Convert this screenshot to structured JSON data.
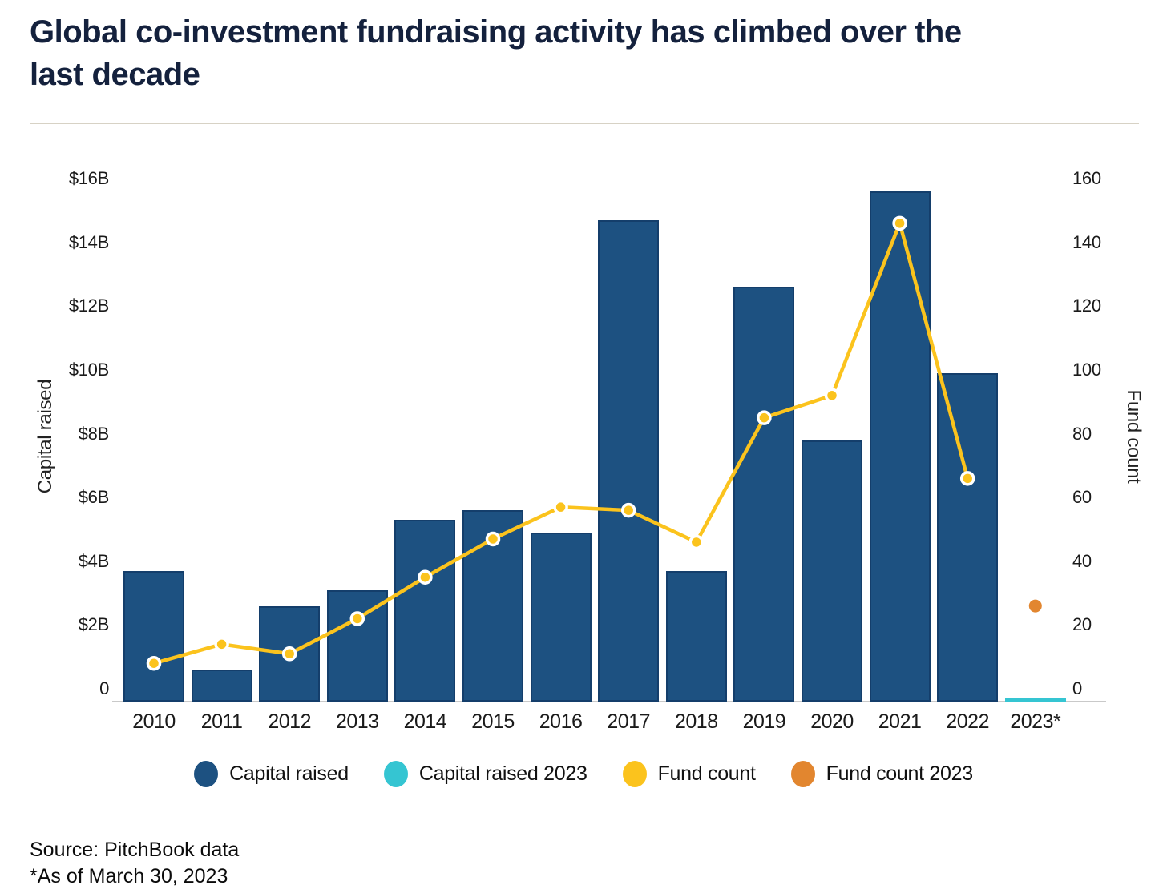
{
  "header": {
    "title_line1": "Global co-investment fundraising activity has climbed over the",
    "title_line2": "last decade"
  },
  "chart_data": {
    "type": "bar",
    "categories": [
      "2010",
      "2011",
      "2012",
      "2013",
      "2014",
      "2015",
      "2016",
      "2017",
      "2018",
      "2019",
      "2020",
      "2021",
      "2022",
      "2023*"
    ],
    "series": [
      {
        "name": "Capital raised",
        "type": "bar",
        "axis": "left",
        "color": "#1d5181",
        "values": [
          4.1,
          1.0,
          3.0,
          3.5,
          5.7,
          6.0,
          5.3,
          15.1,
          4.1,
          13.0,
          8.2,
          16.0,
          10.3,
          null
        ]
      },
      {
        "name": "Capital raised 2023",
        "type": "bar",
        "axis": "left",
        "color": "#35c5d2",
        "values": [
          null,
          null,
          null,
          null,
          null,
          null,
          null,
          null,
          null,
          null,
          null,
          null,
          null,
          0.1
        ]
      },
      {
        "name": "Fund count",
        "type": "line",
        "axis": "right",
        "color": "#fbc31d",
        "marker_stroke": "#ffffff",
        "values": [
          12,
          18,
          15,
          26,
          39,
          51,
          61,
          60,
          50,
          89,
          96,
          150,
          70,
          null
        ]
      },
      {
        "name": "Fund count 2023",
        "type": "scatter",
        "axis": "right",
        "color": "#e2862f",
        "values": [
          null,
          null,
          null,
          null,
          null,
          null,
          null,
          null,
          null,
          null,
          null,
          null,
          null,
          30
        ]
      }
    ],
    "y_left": {
      "label": "Capital raised",
      "ticks": [
        "$16B",
        "$14B",
        "$12B",
        "$10B",
        "$8B",
        "$6B",
        "$4B",
        "$2B",
        "0"
      ],
      "min": 0,
      "max": 16
    },
    "y_right": {
      "label": "Fund count",
      "ticks": [
        "160",
        "140",
        "120",
        "100",
        "80",
        "60",
        "40",
        "20",
        "0"
      ],
      "min": 0,
      "max": 160
    },
    "grid": "off",
    "legend_position": "bottom"
  },
  "legend": {
    "items": [
      {
        "label": "Capital raised",
        "color": "#1d5181"
      },
      {
        "label": "Capital raised 2023",
        "color": "#35c5d2"
      },
      {
        "label": "Fund count",
        "color": "#fbc31d"
      },
      {
        "label": "Fund count 2023",
        "color": "#e2862f"
      }
    ]
  },
  "footer": {
    "source": "Source: PitchBook data",
    "note": "*As of March 30, 2023"
  }
}
